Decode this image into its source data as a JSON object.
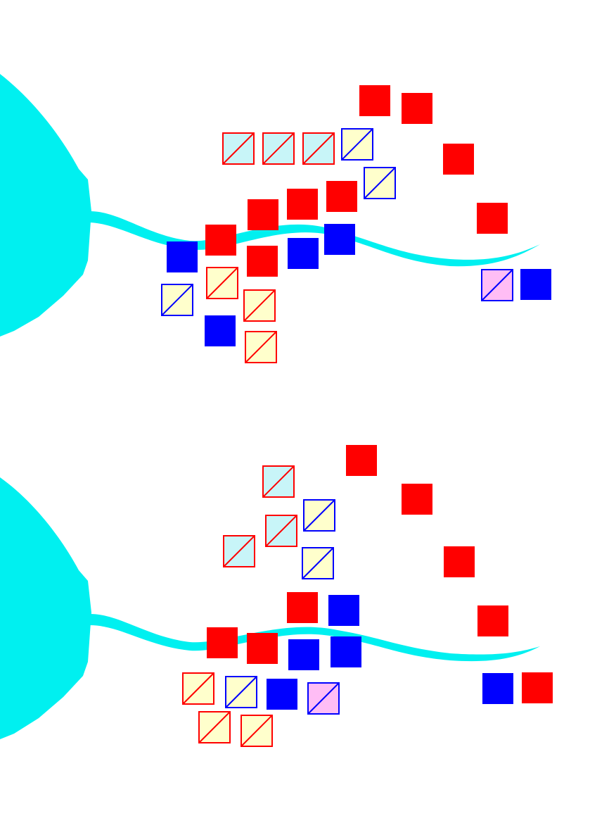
{
  "colors": {
    "background": "#ffffff",
    "water": "#00f0f0",
    "red": "#ff0000",
    "blue": "#0000ff",
    "light_cyan": "#c8f5f8",
    "light_yellow": "#ffffcc",
    "light_pink": "#ffbdf5"
  },
  "unit_types": {
    "solid_red": {
      "fill": "red",
      "stroke": "red",
      "diagonal": false
    },
    "solid_blue": {
      "fill": "blue",
      "stroke": "blue",
      "diagonal": false
    },
    "red_on_cyan": {
      "fill": "light_cyan",
      "stroke": "red",
      "diagonal": true
    },
    "red_on_yellow": {
      "fill": "light_yellow",
      "stroke": "red",
      "diagonal": true
    },
    "blue_on_yellow": {
      "fill": "light_yellow",
      "stroke": "blue",
      "diagonal": true
    },
    "blue_on_pink": {
      "fill": "light_pink",
      "stroke": "blue",
      "diagonal": true
    }
  },
  "panels": [
    {
      "name": "top",
      "units": [
        "solid_red",
        "solid_red",
        "solid_red",
        "solid_red",
        "solid_red",
        "red_on_cyan",
        "red_on_cyan",
        "red_on_cyan",
        "blue_on_yellow",
        "blue_on_yellow",
        "solid_red",
        "solid_red",
        "solid_red",
        "solid_red",
        "solid_blue",
        "solid_blue",
        "solid_blue",
        "red_on_yellow",
        "blue_on_yellow",
        "red_on_yellow",
        "solid_blue",
        "red_on_yellow",
        "blue_on_pink",
        "solid_blue",
        "solid_red"
      ]
    },
    {
      "name": "bottom",
      "units": [
        "solid_red",
        "solid_red",
        "solid_red",
        "solid_red",
        "red_on_cyan",
        "blue_on_yellow",
        "red_on_cyan",
        "red_on_cyan",
        "blue_on_yellow",
        "solid_red",
        "solid_blue",
        "solid_red",
        "solid_red",
        "solid_blue",
        "solid_blue",
        "red_on_yellow",
        "blue_on_yellow",
        "solid_blue",
        "blue_on_pink",
        "red_on_yellow",
        "red_on_yellow",
        "solid_blue",
        "solid_red"
      ]
    }
  ]
}
